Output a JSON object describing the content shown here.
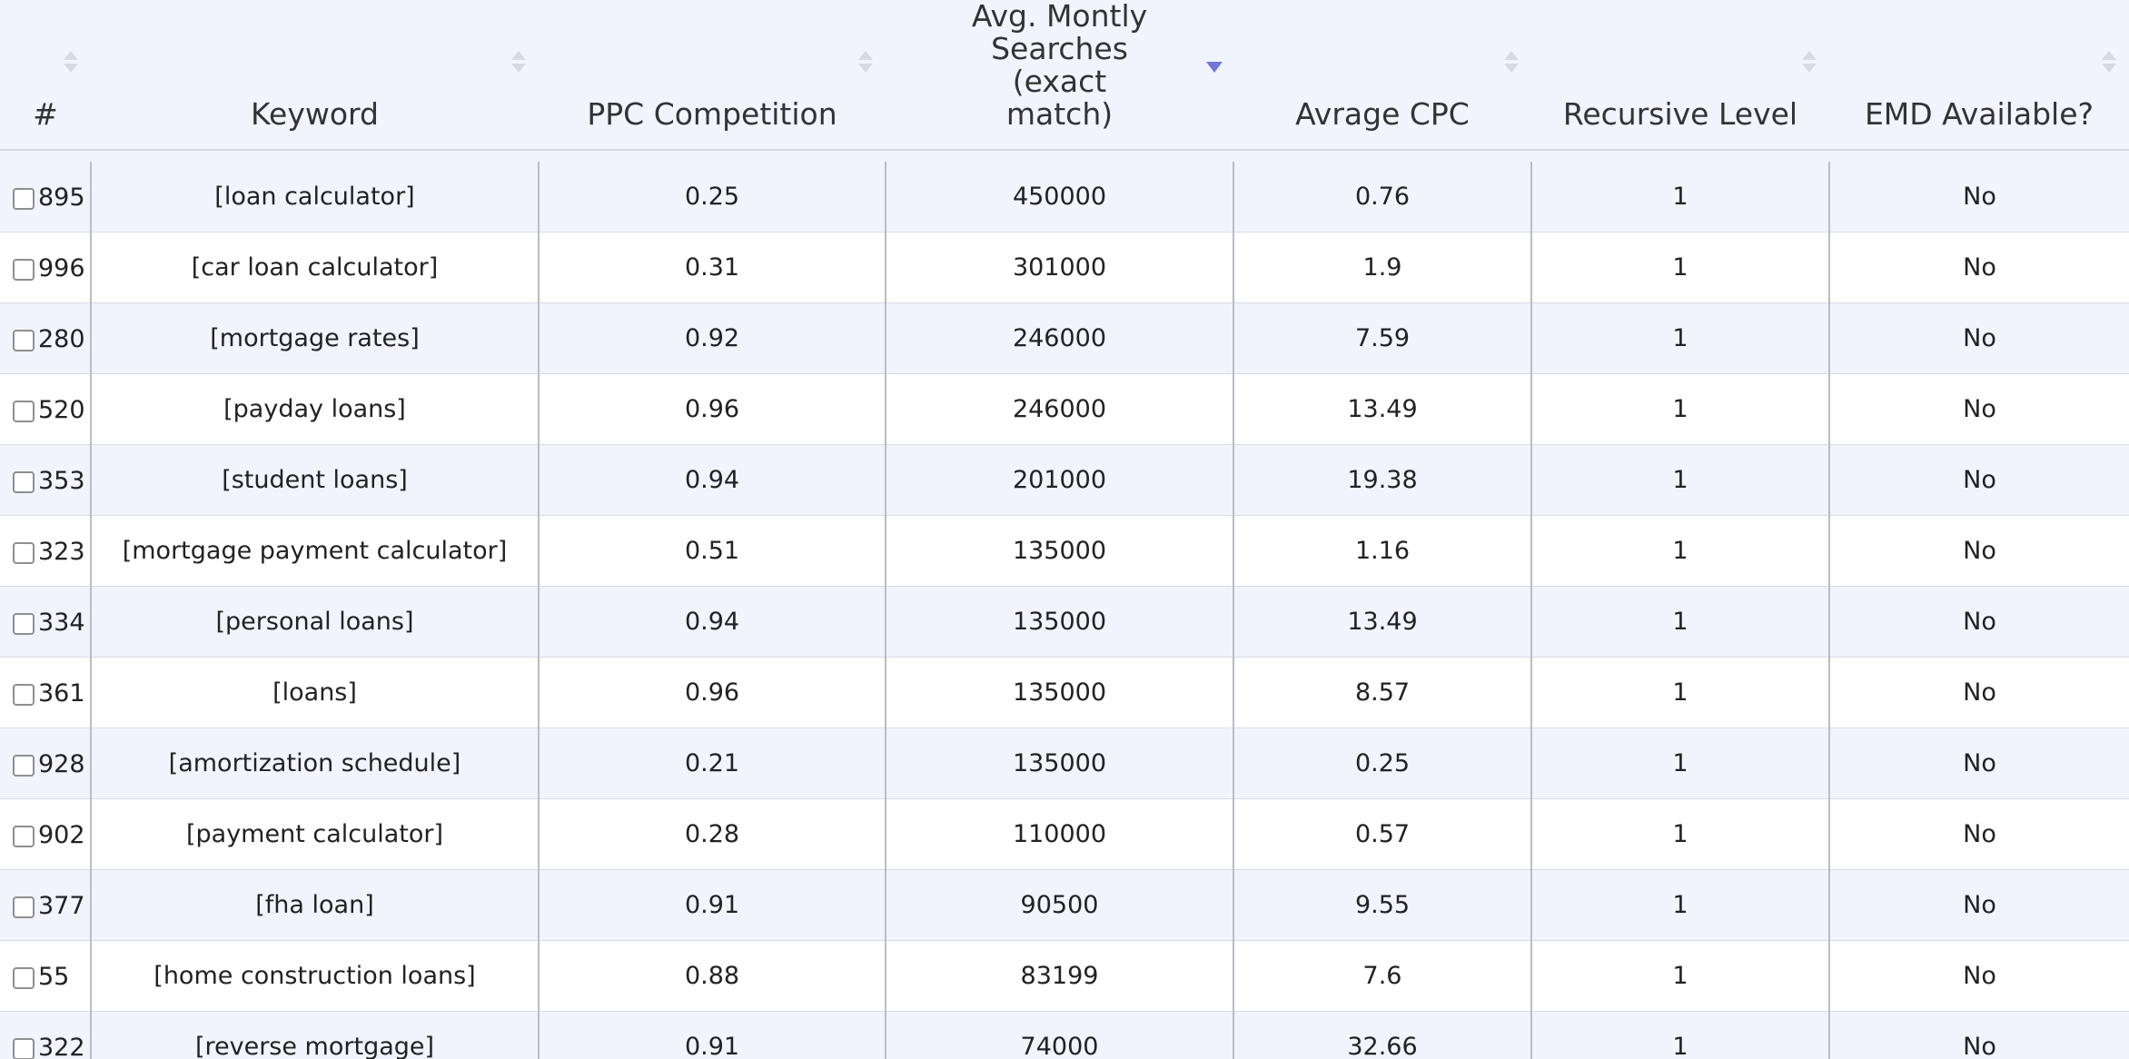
{
  "columns": [
    {
      "id": "num",
      "label": "#",
      "sort": "none"
    },
    {
      "id": "keyword",
      "label": "Keyword",
      "sort": "none"
    },
    {
      "id": "ppc",
      "label": "PPC Competition",
      "sort": "none"
    },
    {
      "id": "searches",
      "label": "Avg. Montly Searches (exact match)",
      "sort": "desc"
    },
    {
      "id": "cpc",
      "label": "Avrage CPC",
      "sort": "none"
    },
    {
      "id": "level",
      "label": "Recursive Level",
      "sort": "none"
    },
    {
      "id": "emd",
      "label": "EMD Available?",
      "sort": "none"
    }
  ],
  "rows": [
    {
      "num": "895",
      "keyword": "[loan calculator]",
      "ppc": "0.25",
      "searches": "450000",
      "cpc": "0.76",
      "level": "1",
      "emd": "No"
    },
    {
      "num": "996",
      "keyword": "[car loan calculator]",
      "ppc": "0.31",
      "searches": "301000",
      "cpc": "1.9",
      "level": "1",
      "emd": "No"
    },
    {
      "num": "280",
      "keyword": "[mortgage rates]",
      "ppc": "0.92",
      "searches": "246000",
      "cpc": "7.59",
      "level": "1",
      "emd": "No"
    },
    {
      "num": "520",
      "keyword": "[payday loans]",
      "ppc": "0.96",
      "searches": "246000",
      "cpc": "13.49",
      "level": "1",
      "emd": "No"
    },
    {
      "num": "353",
      "keyword": "[student loans]",
      "ppc": "0.94",
      "searches": "201000",
      "cpc": "19.38",
      "level": "1",
      "emd": "No"
    },
    {
      "num": "323",
      "keyword": "[mortgage payment calculator]",
      "ppc": "0.51",
      "searches": "135000",
      "cpc": "1.16",
      "level": "1",
      "emd": "No"
    },
    {
      "num": "334",
      "keyword": "[personal loans]",
      "ppc": "0.94",
      "searches": "135000",
      "cpc": "13.49",
      "level": "1",
      "emd": "No"
    },
    {
      "num": "361",
      "keyword": "[loans]",
      "ppc": "0.96",
      "searches": "135000",
      "cpc": "8.57",
      "level": "1",
      "emd": "No"
    },
    {
      "num": "928",
      "keyword": "[amortization schedule]",
      "ppc": "0.21",
      "searches": "135000",
      "cpc": "0.25",
      "level": "1",
      "emd": "No"
    },
    {
      "num": "902",
      "keyword": "[payment calculator]",
      "ppc": "0.28",
      "searches": "110000",
      "cpc": "0.57",
      "level": "1",
      "emd": "No"
    },
    {
      "num": "377",
      "keyword": "[fha loan]",
      "ppc": "0.91",
      "searches": "90500",
      "cpc": "9.55",
      "level": "1",
      "emd": "No"
    },
    {
      "num": "55",
      "keyword": "[home construction loans]",
      "ppc": "0.88",
      "searches": "83199",
      "cpc": "7.6",
      "level": "1",
      "emd": "No"
    },
    {
      "num": "322",
      "keyword": "[reverse mortgage]",
      "ppc": "0.91",
      "searches": "74000",
      "cpc": "32.66",
      "level": "1",
      "emd": "No"
    }
  ]
}
